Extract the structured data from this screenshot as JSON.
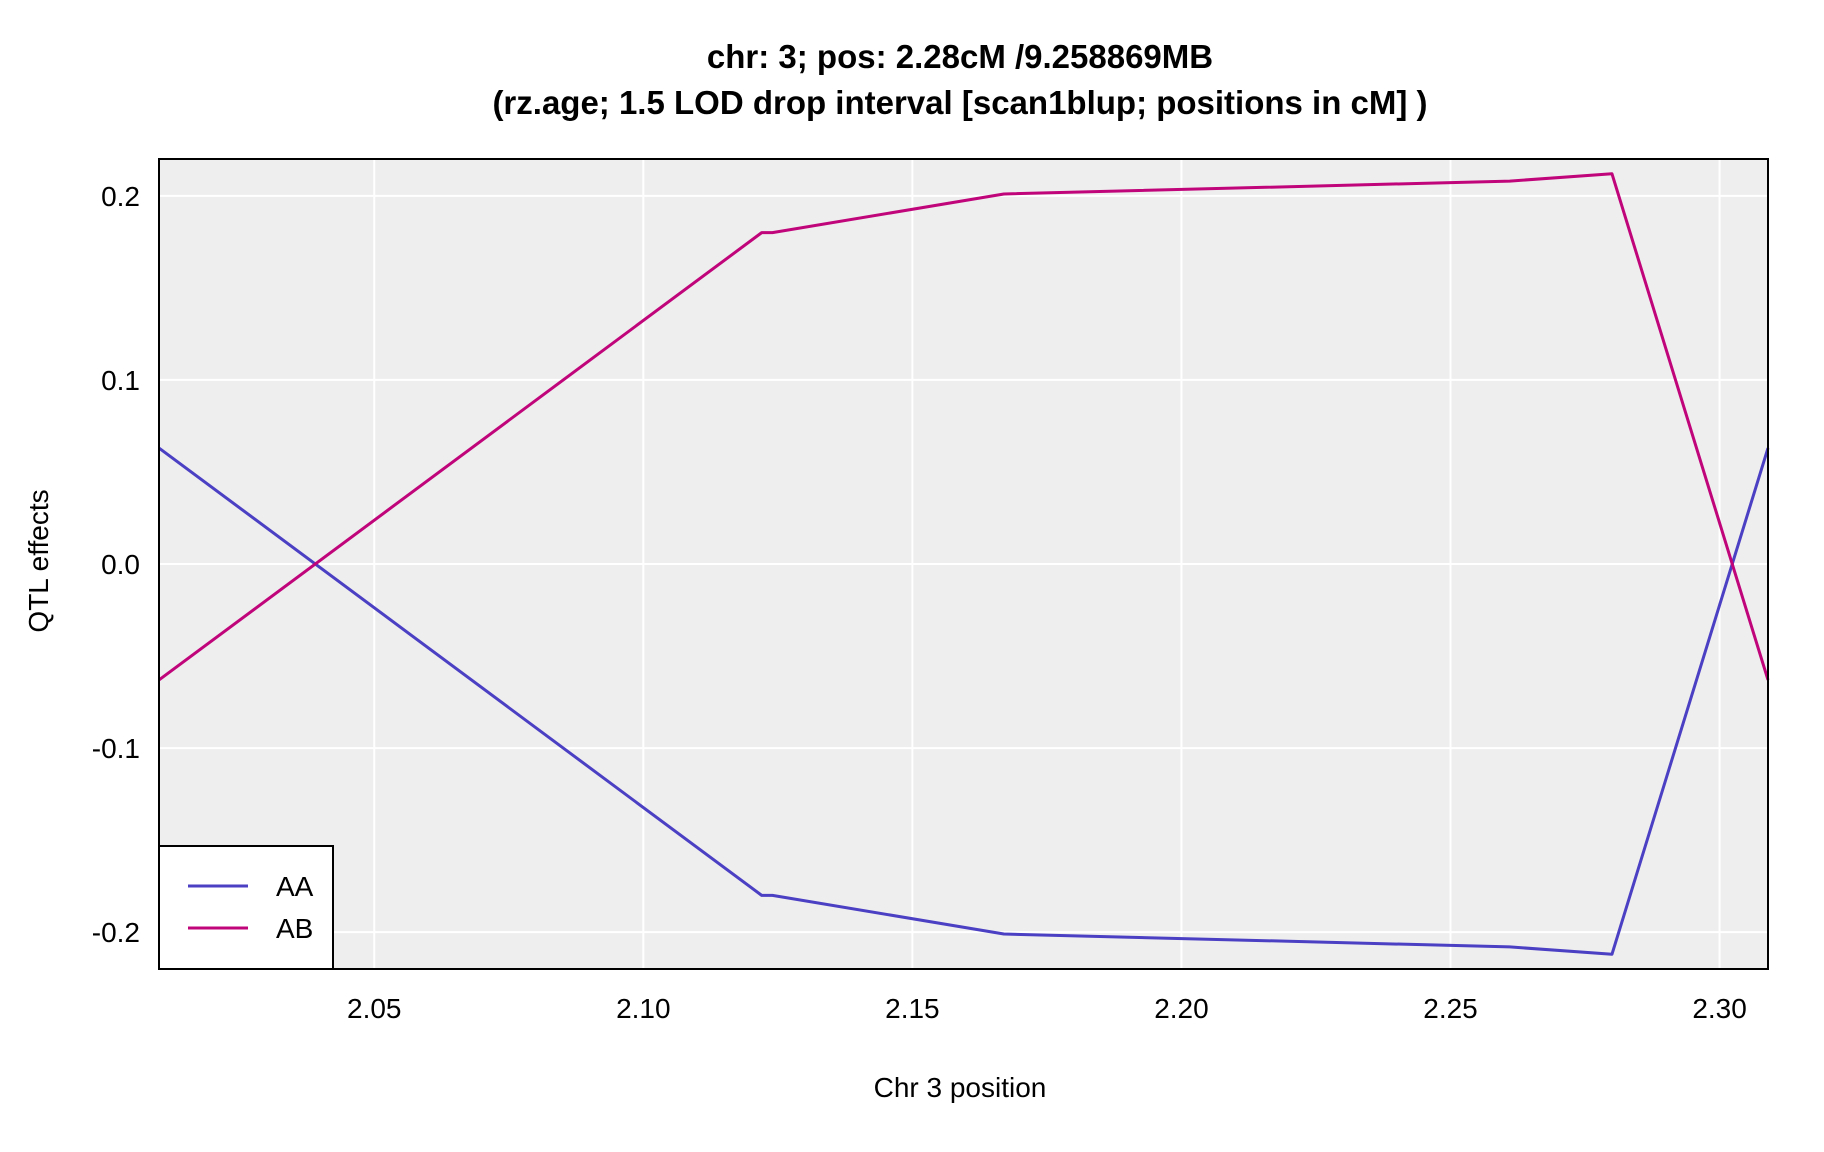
{
  "chart_data": {
    "type": "line",
    "title": "chr: 3; pos: 2.28cM /9.258869MB",
    "subtitle": "(rz.age; 1.5 LOD drop interval [scan1blup; positions in cM] )",
    "xlabel": "Chr 3 position",
    "ylabel": "QTL effects",
    "xlim": [
      2.01,
      2.309
    ],
    "ylim": [
      -0.22,
      0.22
    ],
    "x_ticks": [
      2.05,
      2.1,
      2.15,
      2.2,
      2.25,
      2.3
    ],
    "x_tick_labels": [
      "2.05",
      "2.10",
      "2.15",
      "2.20",
      "2.25",
      "2.30"
    ],
    "y_ticks": [
      -0.2,
      -0.1,
      0.0,
      0.1,
      0.2
    ],
    "y_tick_labels": [
      "-0.2",
      "-0.1",
      "0.0",
      "0.1",
      "0.2"
    ],
    "grid": true,
    "legend_position": "bottom-left",
    "background_color": "#EEEEEE",
    "series": [
      {
        "name": "AA",
        "color": "#4B3FC4",
        "x": [
          2.01,
          2.122,
          2.124,
          2.167,
          2.261,
          2.28,
          2.309
        ],
        "y": [
          0.063,
          -0.18,
          -0.18,
          -0.201,
          -0.208,
          -0.212,
          0.063
        ]
      },
      {
        "name": "AB",
        "color": "#C0047A",
        "x": [
          2.01,
          2.122,
          2.124,
          2.167,
          2.261,
          2.28,
          2.309
        ],
        "y": [
          -0.063,
          0.18,
          0.18,
          0.201,
          0.208,
          0.212,
          -0.063
        ]
      }
    ]
  }
}
